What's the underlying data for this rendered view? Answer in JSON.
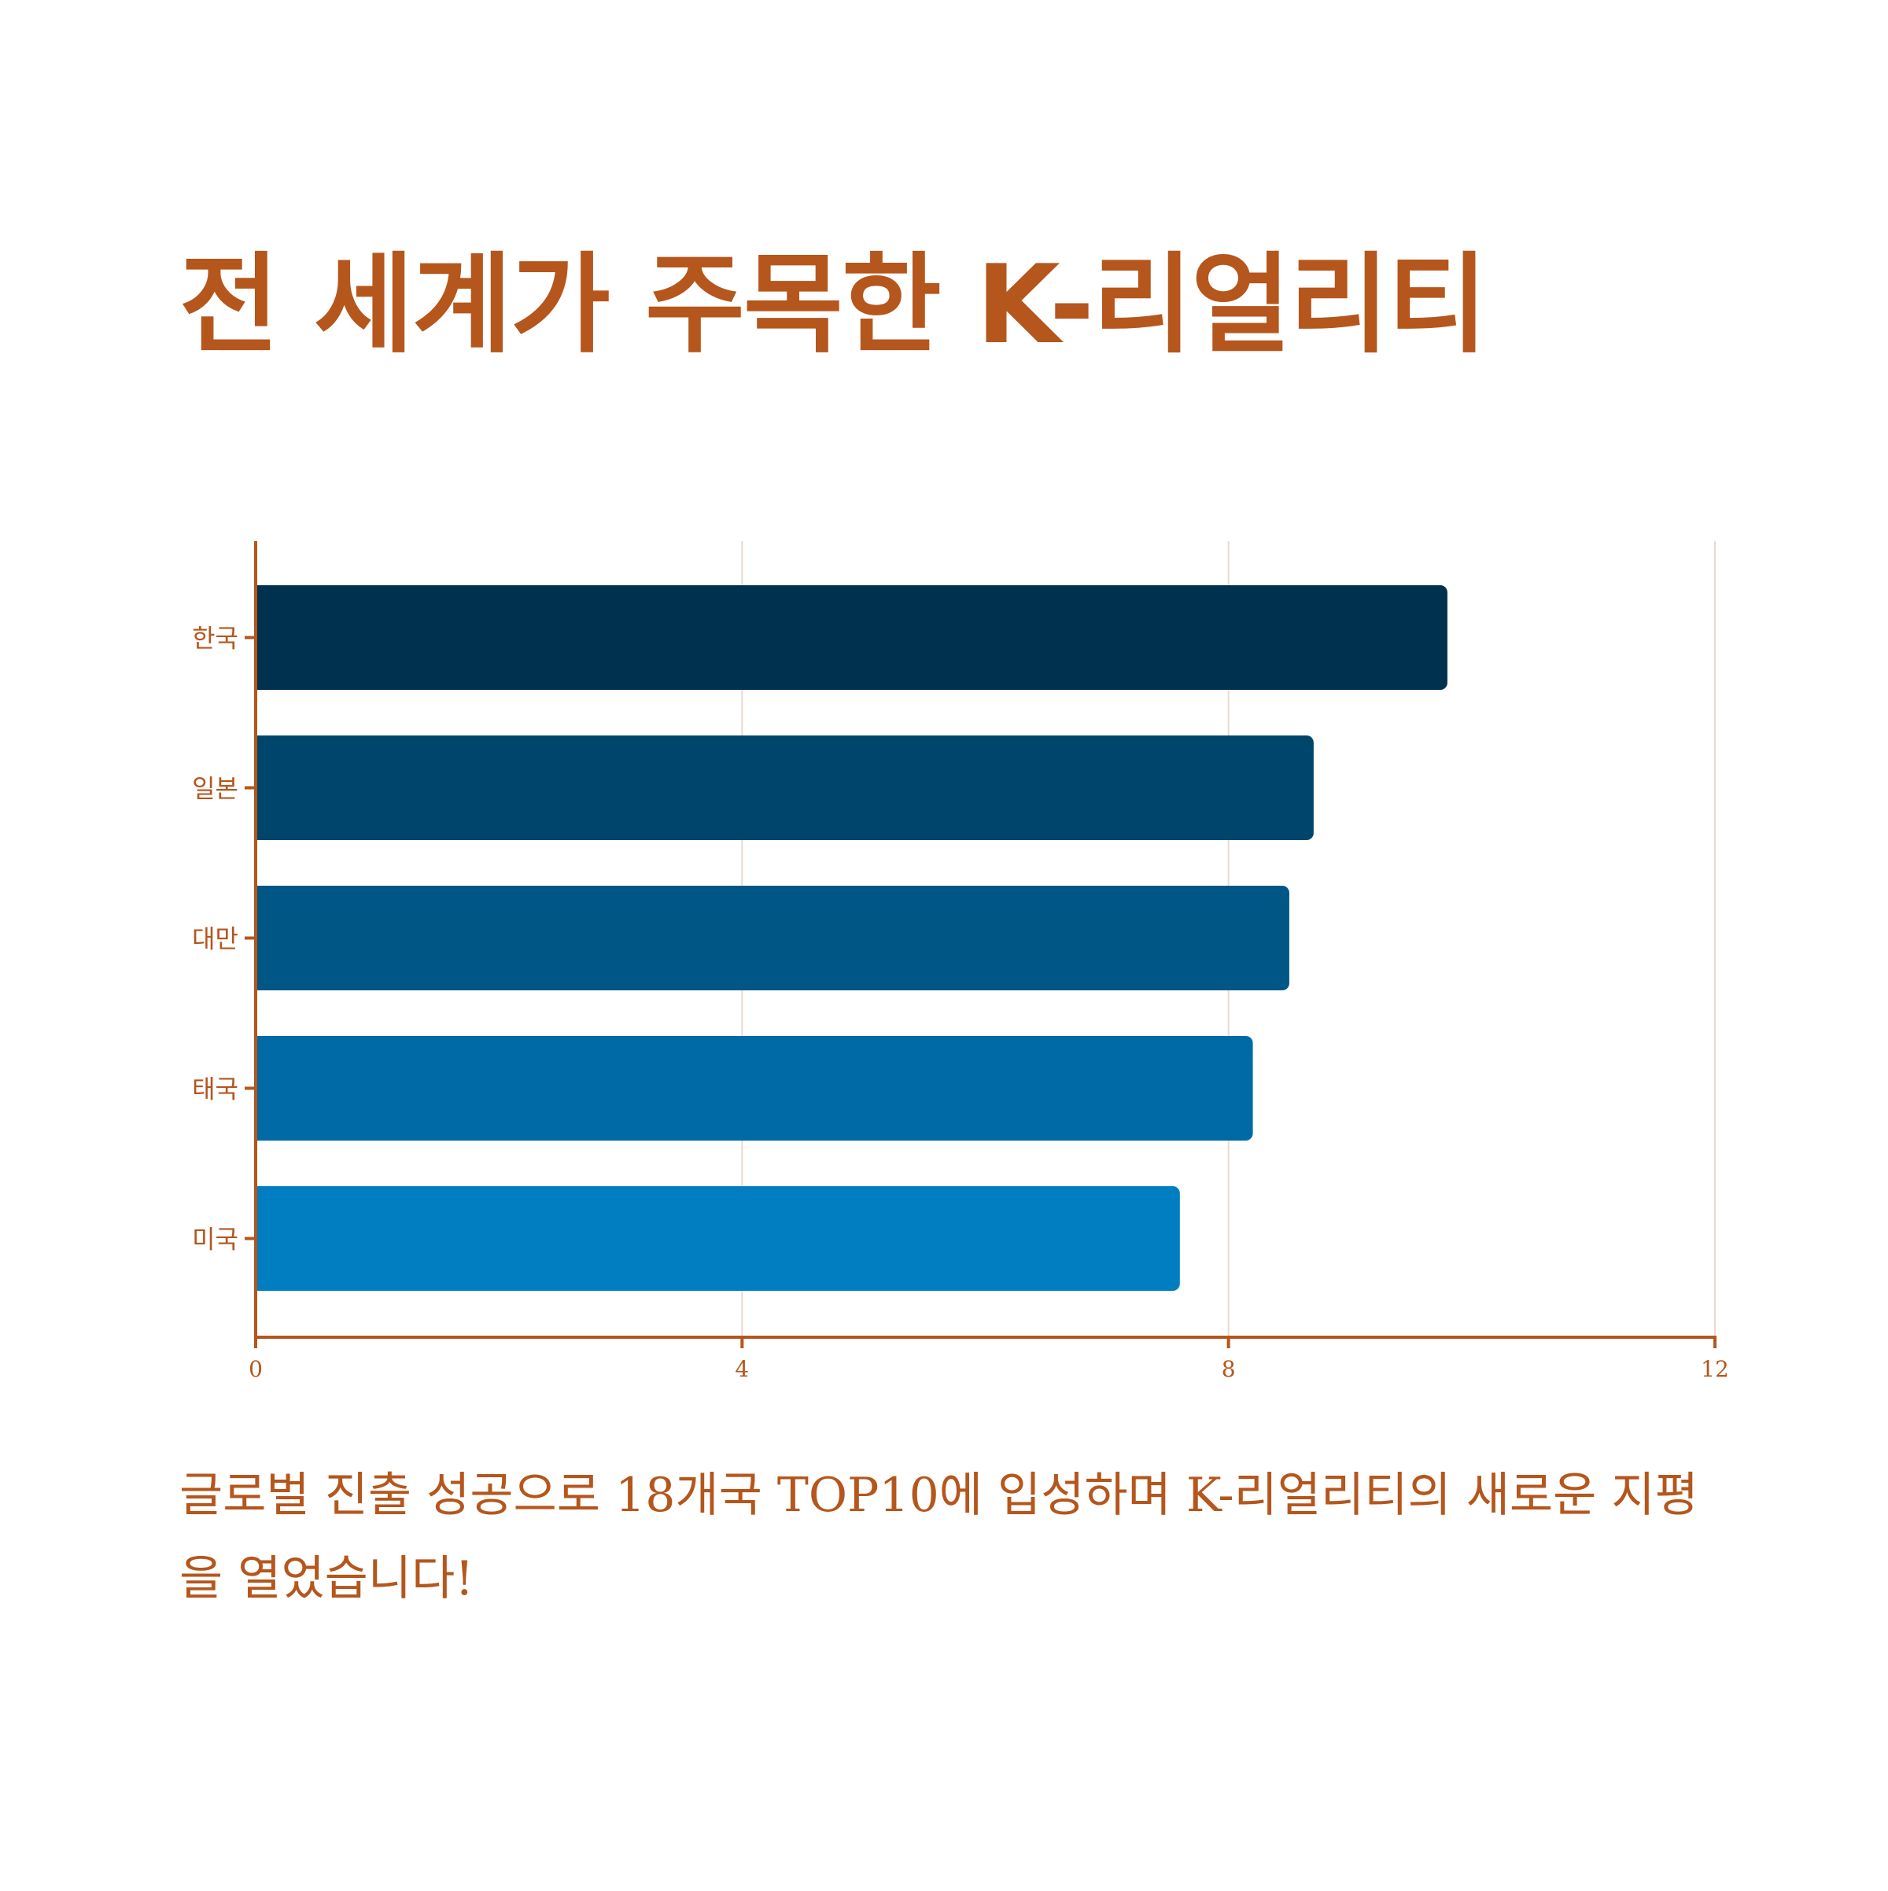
{
  "title": "전 세계가 주목한 K-리얼리티",
  "caption": "글로벌 진출 성공으로 18개국 TOP10에 입성하며 K-리얼리티의 새로운 지평을 열었습니다!",
  "colors": {
    "accent": "#b5561c",
    "grid": "#ead9cf",
    "bars": [
      "#003250",
      "#00456b",
      "#005785",
      "#006aa6",
      "#007ec1"
    ]
  },
  "chart_data": {
    "type": "bar",
    "orientation": "horizontal",
    "title": "",
    "xlabel": "",
    "ylabel": "",
    "categories": [
      "한국",
      "일본",
      "대만",
      "태국",
      "미국"
    ],
    "values": [
      9.8,
      8.7,
      8.5,
      8.2,
      7.6
    ],
    "xlim": [
      0,
      12
    ],
    "xticks": [
      "0",
      "4",
      "8",
      "12"
    ],
    "grid": "vertical",
    "legend": "none"
  }
}
